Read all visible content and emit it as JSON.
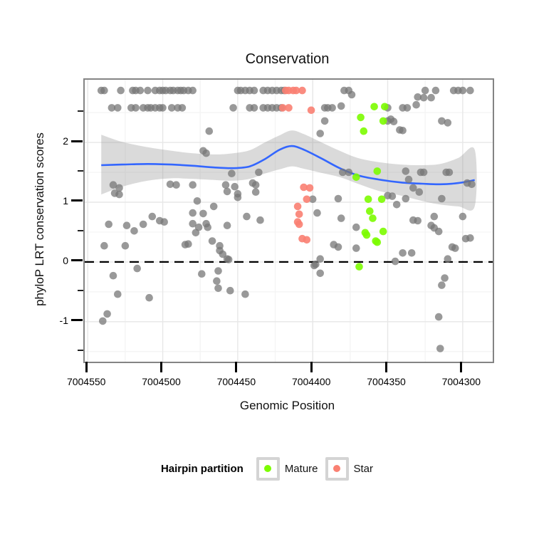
{
  "title": "Conservation",
  "x_axis": {
    "label": "Genomic Position",
    "tick_labels": [
      "7004550",
      "7004500",
      "7004450",
      "7004400",
      "7004350",
      "7004300"
    ],
    "tick_values": [
      7004550,
      7004500,
      7004450,
      7004400,
      7004350,
      7004300
    ],
    "minor_values": [
      7004525,
      7004475,
      7004425,
      7004375,
      7004325
    ]
  },
  "y_axis": {
    "label": "phyloP LRT conservation scores",
    "tick_labels": [
      "2",
      "1",
      "0",
      "-1"
    ],
    "tick_values": [
      2,
      1,
      0,
      -1
    ],
    "minor_values": [
      2.5,
      1.5,
      0.5,
      -0.5,
      -1.5
    ]
  },
  "legend": {
    "title": "Hairpin partition",
    "items": [
      {
        "label": "Mature",
        "color": "#7cfc00"
      },
      {
        "label": "Star",
        "color": "#fa8072"
      }
    ]
  },
  "colors": {
    "gray_points": "#777777",
    "smooth_line": "#3366ff",
    "ribbon": "rgba(140,140,140,0.32)",
    "zero_line": "#000000",
    "grid_major": "#e7e7e7",
    "grid_minor": "#f3f3f3",
    "panel_border": "#848484"
  },
  "chart_data": {
    "type": "scatter",
    "title": "Conservation",
    "xlabel": "Genomic Position",
    "ylabel": "phyloP LRT conservation scores",
    "x_reversed": true,
    "xlim": [
      7004552,
      7004280
    ],
    "ylim": [
      -1.67,
      3.05
    ],
    "grid": true,
    "legend_position": "bottom",
    "hline": {
      "y": 0,
      "style": "dashed"
    },
    "series": [
      {
        "name": "other",
        "color": "#777777",
        "opacity": 0.75,
        "points": [
          [
            7004541,
            2.87
          ],
          [
            7004539,
            2.87
          ],
          [
            7004528,
            2.87
          ],
          [
            7004520,
            2.87
          ],
          [
            7004518,
            2.87
          ],
          [
            7004515,
            2.87
          ],
          [
            7004510,
            2.87
          ],
          [
            7004505,
            2.87
          ],
          [
            7004502,
            2.87
          ],
          [
            7004500,
            2.87
          ],
          [
            7004498,
            2.87
          ],
          [
            7004495,
            2.87
          ],
          [
            7004493,
            2.87
          ],
          [
            7004490,
            2.87
          ],
          [
            7004488,
            2.87
          ],
          [
            7004486,
            2.87
          ],
          [
            7004483,
            2.87
          ],
          [
            7004480,
            2.87
          ],
          [
            7004450,
            2.87
          ],
          [
            7004448,
            2.87
          ],
          [
            7004445,
            2.87
          ],
          [
            7004442,
            2.87
          ],
          [
            7004439,
            2.87
          ],
          [
            7004433,
            2.87
          ],
          [
            7004430,
            2.87
          ],
          [
            7004427,
            2.87
          ],
          [
            7004424,
            2.87
          ],
          [
            7004421,
            2.87
          ],
          [
            7004419,
            2.87
          ],
          [
            7004379,
            2.87
          ],
          [
            7004376,
            2.87
          ],
          [
            7004374,
            2.8
          ],
          [
            7004325,
            2.87
          ],
          [
            7004318,
            2.87
          ],
          [
            7004306,
            2.87
          ],
          [
            7004303,
            2.87
          ],
          [
            7004300,
            2.87
          ],
          [
            7004295,
            2.87
          ],
          [
            7004534,
            2.58
          ],
          [
            7004530,
            2.58
          ],
          [
            7004521,
            2.58
          ],
          [
            7004518,
            2.58
          ],
          [
            7004513,
            2.58
          ],
          [
            7004510,
            2.58
          ],
          [
            7004508,
            2.58
          ],
          [
            7004505,
            2.58
          ],
          [
            7004502,
            2.58
          ],
          [
            7004500,
            2.58
          ],
          [
            7004494,
            2.58
          ],
          [
            7004490,
            2.58
          ],
          [
            7004487,
            2.58
          ],
          [
            7004453,
            2.58
          ],
          [
            7004442,
            2.58
          ],
          [
            7004439,
            2.58
          ],
          [
            7004433,
            2.58
          ],
          [
            7004430,
            2.58
          ],
          [
            7004427,
            2.58
          ],
          [
            7004424,
            2.58
          ],
          [
            7004421,
            2.58
          ],
          [
            7004392,
            2.58
          ],
          [
            7004390,
            2.58
          ],
          [
            7004387,
            2.58
          ],
          [
            7004381,
            2.61
          ],
          [
            7004350,
            2.58
          ],
          [
            7004340,
            2.58
          ],
          [
            7004337,
            2.58
          ],
          [
            7004331,
            2.63
          ],
          [
            7004330,
            2.76
          ],
          [
            7004326,
            2.75
          ],
          [
            7004321,
            2.75
          ],
          [
            7004469,
            2.19
          ],
          [
            7004473,
            1.86
          ],
          [
            7004471,
            1.82
          ],
          [
            7004454,
            1.48
          ],
          [
            7004436,
            1.5
          ],
          [
            7004395,
            2.15
          ],
          [
            7004392,
            2.36
          ],
          [
            7004350,
            2.36
          ],
          [
            7004346,
            2.35
          ],
          [
            7004348,
            2.39
          ],
          [
            7004342,
            2.21
          ],
          [
            7004340,
            2.2
          ],
          [
            7004314,
            2.36
          ],
          [
            7004310,
            2.33
          ],
          [
            7004380,
            1.5
          ],
          [
            7004376,
            1.5
          ],
          [
            7004338,
            1.52
          ],
          [
            7004328,
            1.5
          ],
          [
            7004326,
            1.5
          ],
          [
            7004311,
            1.5
          ],
          [
            7004309,
            1.5
          ],
          [
            7004297,
            1.32
          ],
          [
            7004294,
            1.3
          ],
          [
            7004336,
            1.38
          ],
          [
            7004333,
            1.24
          ],
          [
            7004329,
            1.17
          ],
          [
            7004314,
            1.06
          ],
          [
            7004533,
            1.29
          ],
          [
            7004529,
            1.24
          ],
          [
            7004532,
            1.15
          ],
          [
            7004529,
            1.13
          ],
          [
            7004495,
            1.3
          ],
          [
            7004491,
            1.29
          ],
          [
            7004480,
            1.29
          ],
          [
            7004458,
            1.29
          ],
          [
            7004457,
            1.18
          ],
          [
            7004452,
            1.26
          ],
          [
            7004450,
            1.14
          ],
          [
            7004450,
            1.08
          ],
          [
            7004440,
            1.32
          ],
          [
            7004438,
            1.29
          ],
          [
            7004438,
            1.17
          ],
          [
            7004477,
            1.02
          ],
          [
            7004466,
            0.93
          ],
          [
            7004480,
            0.82
          ],
          [
            7004473,
            0.81
          ],
          [
            7004507,
            0.76
          ],
          [
            7004502,
            0.69
          ],
          [
            7004499,
            0.67
          ],
          [
            7004513,
            0.63
          ],
          [
            7004536,
            0.63
          ],
          [
            7004524,
            0.61
          ],
          [
            7004519,
            0.52
          ],
          [
            7004480,
            0.64
          ],
          [
            7004476,
            0.58
          ],
          [
            7004471,
            0.64
          ],
          [
            7004470,
            0.58
          ],
          [
            7004478,
            0.49
          ],
          [
            7004457,
            0.61
          ],
          [
            7004444,
            0.76
          ],
          [
            7004435,
            0.7
          ],
          [
            7004539,
            0.27
          ],
          [
            7004525,
            0.27
          ],
          [
            7004485,
            0.29
          ],
          [
            7004483,
            0.3
          ],
          [
            7004467,
            0.35
          ],
          [
            7004462,
            0.27
          ],
          [
            7004462,
            0.19
          ],
          [
            7004460,
            0.13
          ],
          [
            7004457,
            0.05
          ],
          [
            7004456,
            0.04
          ],
          [
            7004517,
            -0.11
          ],
          [
            7004533,
            -0.23
          ],
          [
            7004530,
            -0.54
          ],
          [
            7004537,
            -0.87
          ],
          [
            7004540,
            -0.99
          ],
          [
            7004509,
            -0.6
          ],
          [
            7004474,
            -0.2
          ],
          [
            7004463,
            -0.15
          ],
          [
            7004464,
            -0.32
          ],
          [
            7004463,
            -0.44
          ],
          [
            7004455,
            -0.48
          ],
          [
            7004445,
            -0.54
          ],
          [
            7004400,
            1.05
          ],
          [
            7004397,
            0.82
          ],
          [
            7004383,
            1.06
          ],
          [
            7004381,
            0.73
          ],
          [
            7004371,
            0.58
          ],
          [
            7004386,
            0.29
          ],
          [
            7004383,
            0.25
          ],
          [
            7004371,
            0.23
          ],
          [
            7004395,
            0.05
          ],
          [
            7004399,
            -0.06
          ],
          [
            7004398,
            -0.04
          ],
          [
            7004395,
            -0.19
          ],
          [
            7004344,
            0.96
          ],
          [
            7004350,
            1.11
          ],
          [
            7004347,
            1.1
          ],
          [
            7004338,
            1.06
          ],
          [
            7004333,
            0.7
          ],
          [
            7004330,
            0.69
          ],
          [
            7004319,
            0.76
          ],
          [
            7004321,
            0.61
          ],
          [
            7004319,
            0.57
          ],
          [
            7004316,
            0.51
          ],
          [
            7004300,
            0.76
          ],
          [
            7004298,
            0.39
          ],
          [
            7004295,
            0.4
          ],
          [
            7004307,
            0.25
          ],
          [
            7004305,
            0.23
          ],
          [
            7004310,
            0.05
          ],
          [
            7004340,
            0.15
          ],
          [
            7004334,
            0.15
          ],
          [
            7004345,
            0.01
          ],
          [
            7004312,
            -0.27
          ],
          [
            7004314,
            -0.39
          ],
          [
            7004316,
            -0.92
          ],
          [
            7004315,
            -1.45
          ]
        ]
      },
      {
        "name": "Mature",
        "color": "#7cfc00",
        "opacity": 0.9,
        "points": [
          [
            7004359,
            2.6
          ],
          [
            7004352,
            2.6
          ],
          [
            7004368,
            2.42
          ],
          [
            7004353,
            2.36
          ],
          [
            7004366,
            2.19
          ],
          [
            7004357,
            1.52
          ],
          [
            7004371,
            1.42
          ],
          [
            7004363,
            1.05
          ],
          [
            7004354,
            1.05
          ],
          [
            7004362,
            0.85
          ],
          [
            7004360,
            0.73
          ],
          [
            7004365,
            0.49
          ],
          [
            7004364,
            0.45
          ],
          [
            7004353,
            0.51
          ],
          [
            7004358,
            0.35
          ],
          [
            7004357,
            0.33
          ],
          [
            7004369,
            -0.08
          ]
        ]
      },
      {
        "name": "Star",
        "color": "#fa8072",
        "opacity": 0.9,
        "points": [
          [
            7004418,
            2.87
          ],
          [
            7004416,
            2.87
          ],
          [
            7004413,
            2.87
          ],
          [
            7004411,
            2.87
          ],
          [
            7004407,
            2.87
          ],
          [
            7004420,
            2.58
          ],
          [
            7004416,
            2.58
          ],
          [
            7004401,
            2.54
          ],
          [
            7004406,
            1.25
          ],
          [
            7004402,
            1.24
          ],
          [
            7004404,
            1.05
          ],
          [
            7004410,
            0.93
          ],
          [
            7004409,
            0.8
          ],
          [
            7004410,
            0.67
          ],
          [
            7004409,
            0.63
          ],
          [
            7004407,
            0.39
          ],
          [
            7004404,
            0.37
          ]
        ]
      }
    ],
    "smooth": {
      "color": "#3366ff",
      "x": [
        7004541,
        7004527,
        7004510,
        7004494,
        7004480,
        7004465,
        7004453,
        7004442,
        7004432,
        7004422,
        7004414,
        7004406,
        7004394,
        7004382,
        7004370,
        7004356,
        7004341,
        7004327,
        7004315,
        7004303,
        7004292
      ],
      "y": [
        1.62,
        1.63,
        1.64,
        1.63,
        1.61,
        1.58,
        1.57,
        1.6,
        1.72,
        1.88,
        1.94,
        1.88,
        1.73,
        1.57,
        1.45,
        1.38,
        1.33,
        1.31,
        1.3,
        1.32,
        1.37
      ],
      "ymax": [
        2.13,
        2.01,
        1.92,
        1.86,
        1.82,
        1.8,
        1.82,
        1.87,
        2.0,
        2.12,
        2.2,
        2.14,
        2.0,
        1.86,
        1.74,
        1.67,
        1.63,
        1.62,
        1.64,
        1.74,
        1.88
      ],
      "ymin": [
        1.13,
        1.26,
        1.36,
        1.4,
        1.39,
        1.37,
        1.36,
        1.39,
        1.48,
        1.55,
        1.6,
        1.56,
        1.49,
        1.42,
        1.31,
        1.19,
        1.11,
        1.02,
        0.96,
        0.93,
        0.93
      ]
    }
  }
}
